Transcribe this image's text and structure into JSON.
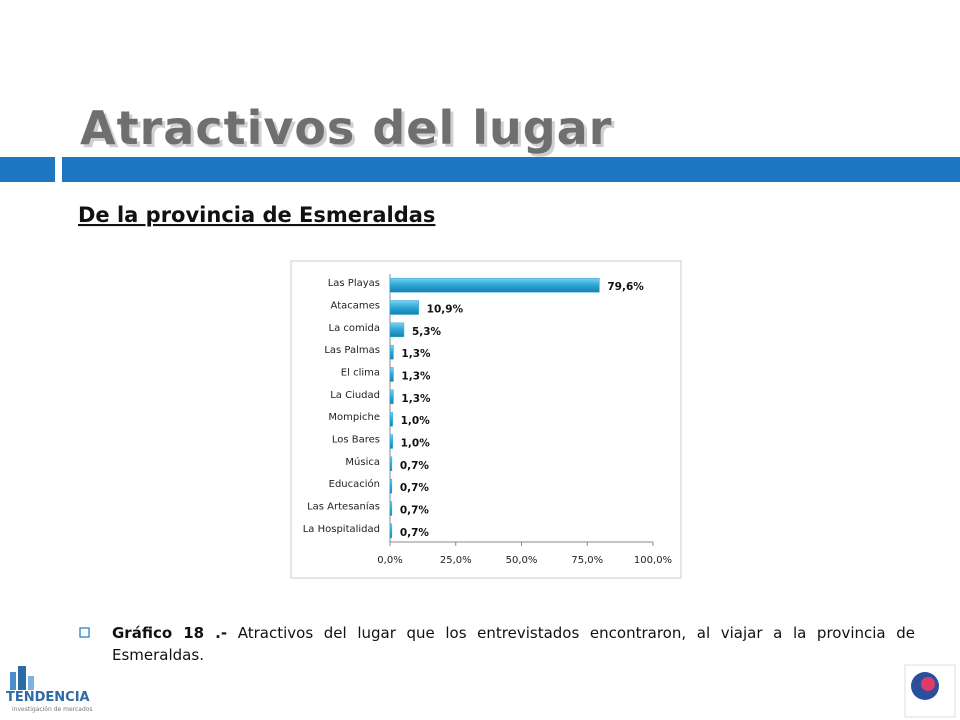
{
  "slide_title": "Atractivos del lugar",
  "subtitle": "De la provincia de Esmeraldas",
  "caption": {
    "label": "Gráfico 18 .-",
    "text": "Atractivos del lugar que los entrevistados encontraron, al viajar a la provincia de Esmeraldas."
  },
  "logo": {
    "name": "TENDENCIA",
    "tagline": "investigación de mercados"
  },
  "chart_data": {
    "type": "hbar",
    "categories": [
      "Las Playas",
      "Atacames",
      "La comida",
      "Las Palmas",
      "El clima",
      "La Ciudad",
      "Mompiche",
      "Los Bares",
      "Música",
      "Educación",
      "Las Artesanías",
      "La Hospitalidad"
    ],
    "values": [
      79.6,
      10.9,
      5.3,
      1.3,
      1.3,
      1.3,
      1.0,
      1.0,
      0.7,
      0.7,
      0.7,
      0.7
    ],
    "value_labels": [
      "79,6%",
      "10,9%",
      "5,3%",
      "1,3%",
      "1,3%",
      "1,3%",
      "1,0%",
      "1,0%",
      "0,7%",
      "0,7%",
      "0,7%",
      "0,7%"
    ],
    "color": "#2aa7d6",
    "xlim": [
      0,
      100
    ],
    "xticks": [
      {
        "value": 0,
        "label": "0,0%"
      },
      {
        "value": 25,
        "label": "25,0%"
      },
      {
        "value": 50,
        "label": "50,0%"
      },
      {
        "value": 75,
        "label": "75,0%"
      },
      {
        "value": 100,
        "label": "100,0%"
      }
    ]
  }
}
